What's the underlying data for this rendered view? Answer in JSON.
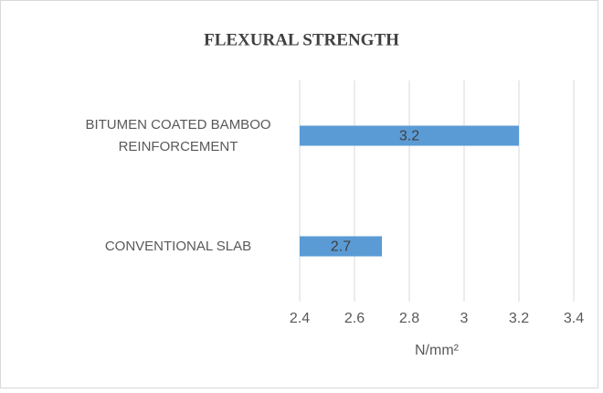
{
  "chart_data": {
    "type": "bar",
    "orientation": "horizontal",
    "title": "FLEXURAL STRENGTH",
    "categories": [
      "BITUMEN COATED BAMBOO REINFORCEMENT",
      "CONVENTIONAL SLAB"
    ],
    "values": [
      3.2,
      2.7
    ],
    "color": "#5b9bd5",
    "xlim": [
      2.4,
      3.4
    ],
    "xticks": [
      2.4,
      2.6,
      2.8,
      3,
      3.2,
      3.4
    ],
    "grid": true,
    "x_label": "N/mm²"
  }
}
